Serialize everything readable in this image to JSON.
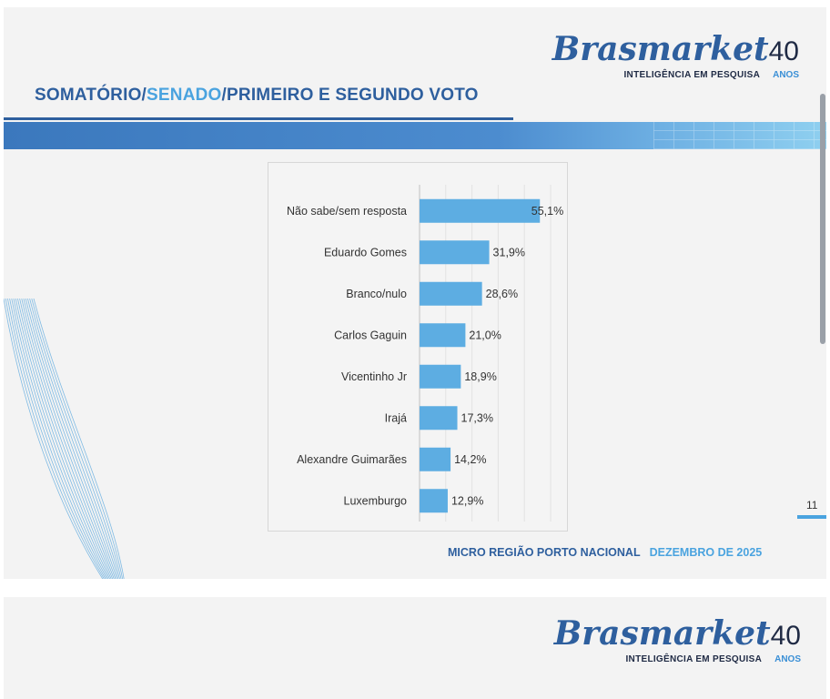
{
  "brand": {
    "name": "Brasmarket",
    "anniversary": "40",
    "tagline": "INTELIGÊNCIA EM PESQUISA",
    "anos": "ANOS"
  },
  "slide": {
    "title_part1": "SOMATÓRIO/",
    "title_highlight": "SENADO",
    "title_part2": "/PRIMEIRO E SEGUNDO VOTO",
    "page_number": "11",
    "footer_region": "MICRO REGIÃO PORTO NACIONAL",
    "footer_date": "DEZEMBRO DE 2025"
  },
  "colors": {
    "brand_blue": "#2e5f9e",
    "accent_blue": "#4aa3df",
    "bar": "#5dade2"
  },
  "chart_data": {
    "type": "bar",
    "orientation": "horizontal",
    "categories": [
      "Não sabe/sem resposta",
      "Eduardo Gomes",
      "Branco/nulo",
      "Carlos Gaguin",
      "Vicentinho Jr",
      "Irajá",
      "Alexandre Guimarães",
      "Luxemburgo"
    ],
    "values": [
      55.1,
      31.9,
      28.6,
      21.0,
      18.9,
      17.3,
      14.2,
      12.9
    ],
    "value_labels": [
      "55,1%",
      "31,9%",
      "28,6%",
      "21,0%",
      "18,9%",
      "17,3%",
      "14,2%",
      "12,9%"
    ],
    "xlim": [
      0,
      60
    ],
    "grid": true
  }
}
